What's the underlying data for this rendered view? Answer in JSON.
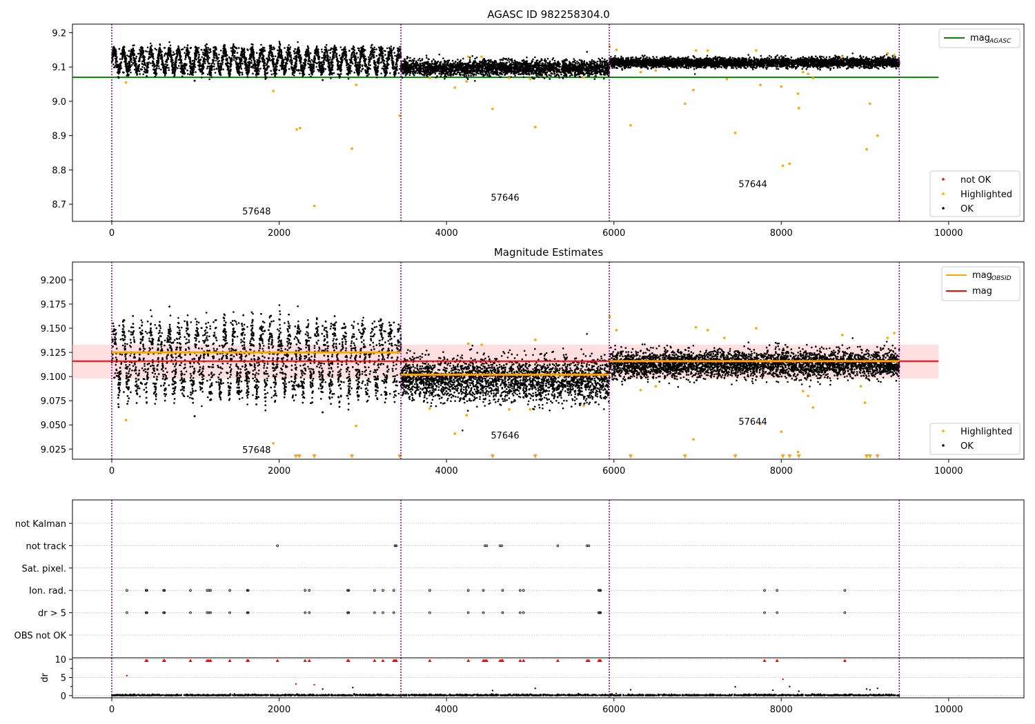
{
  "colors": {
    "ok": "#000000",
    "highlighted": "#ffa500",
    "not_ok": "#ff0000",
    "agasc_line": "#008000",
    "obsid_line": "#ffa500",
    "mag_line": "#ff0000",
    "mag_band": "#ffc0c0",
    "boundary": "#800080",
    "grid": "#b0b0b0"
  },
  "chart_data": [
    {
      "type": "scatter",
      "title": "AGASC ID 982258304.0",
      "xlim": [
        -470,
        10900
      ],
      "ylim": [
        8.65,
        9.225
      ],
      "x_ticks": [
        0,
        2000,
        4000,
        6000,
        8000,
        10000
      ],
      "y_ticks": [
        8.7,
        8.8,
        8.9,
        9.0,
        9.1,
        9.2
      ],
      "y_tick_labels": [
        "8.7",
        "8.8",
        "8.9",
        "9.0",
        "9.1",
        "9.2"
      ],
      "legend_top": {
        "placement": "top-right",
        "entries": [
          {
            "label_main": "mag",
            "label_sub": "AGASC",
            "color": "#008000",
            "kind": "line"
          }
        ]
      },
      "legend_bottom": {
        "placement": "bottom-right",
        "entries": [
          {
            "label": "not OK",
            "color": "#ff0000"
          },
          {
            "label": "Highlighted",
            "color": "#ffa500"
          },
          {
            "label": "OK",
            "color": "#000000"
          }
        ]
      },
      "hlines": [
        {
          "y": 9.07,
          "x_range": [
            -470,
            9880
          ],
          "color": "#008000"
        }
      ],
      "observation_boundaries": [
        0,
        3455,
        5945,
        9410
      ],
      "observations": [
        {
          "obsid": "57648",
          "x_range": [
            0,
            3455
          ],
          "label_pos": [
            1730,
            8.67
          ],
          "ok_base": 9.118,
          "pattern": "oscillating"
        },
        {
          "obsid": "57646",
          "x_range": [
            3455,
            5945
          ],
          "label_pos": [
            4700,
            8.71
          ],
          "ok_base": 9.097,
          "pattern": "noisy"
        },
        {
          "obsid": "57644",
          "x_range": [
            5945,
            9410
          ],
          "label_pos": [
            7660,
            8.75
          ],
          "ok_base": 9.113,
          "pattern": "flat"
        }
      ],
      "highlighted_points": [
        [
          170,
          9.055
        ],
        [
          1930,
          9.03
        ],
        [
          2210,
          8.918
        ],
        [
          2250,
          8.922
        ],
        [
          2420,
          8.695
        ],
        [
          2870,
          8.862
        ],
        [
          2920,
          9.048
        ],
        [
          3440,
          8.958
        ],
        [
          3800,
          9.068
        ],
        [
          4100,
          9.04
        ],
        [
          4240,
          9.058
        ],
        [
          4260,
          9.13
        ],
        [
          4420,
          9.13
        ],
        [
          4550,
          8.978
        ],
        [
          4750,
          9.068
        ],
        [
          5000,
          9.065
        ],
        [
          5060,
          8.925
        ],
        [
          5640,
          9.07
        ],
        [
          5950,
          9.16
        ],
        [
          6030,
          9.15
        ],
        [
          6200,
          8.93
        ],
        [
          6320,
          9.085
        ],
        [
          6500,
          9.09
        ],
        [
          6850,
          8.993
        ],
        [
          6950,
          9.033
        ],
        [
          6980,
          9.148
        ],
        [
          7120,
          9.148
        ],
        [
          7350,
          9.065
        ],
        [
          7450,
          8.908
        ],
        [
          7700,
          9.148
        ],
        [
          7750,
          9.048
        ],
        [
          8000,
          9.043
        ],
        [
          8020,
          8.812
        ],
        [
          8100,
          8.818
        ],
        [
          8200,
          9.022
        ],
        [
          8210,
          8.98
        ],
        [
          8260,
          9.085
        ],
        [
          8320,
          9.08
        ],
        [
          8380,
          9.068
        ],
        [
          8730,
          9.13
        ],
        [
          9020,
          8.86
        ],
        [
          9060,
          8.993
        ],
        [
          9150,
          8.9
        ],
        [
          9270,
          9.14
        ],
        [
          9350,
          9.135
        ]
      ],
      "ok_outliers": [
        [
          990,
          9.06
        ],
        [
          2520,
          9.062
        ]
      ]
    },
    {
      "type": "scatter",
      "title": "Magnitude Estimates",
      "xlim": [
        -470,
        10900
      ],
      "ylim": [
        9.0145,
        9.2185
      ],
      "x_ticks": [
        0,
        2000,
        4000,
        6000,
        8000,
        10000
      ],
      "y_ticks": [
        9.025,
        9.05,
        9.075,
        9.1,
        9.125,
        9.15,
        9.175,
        9.2
      ],
      "y_tick_labels": [
        "9.025",
        "9.050",
        "9.075",
        "9.100",
        "9.125",
        "9.150",
        "9.175",
        "9.200"
      ],
      "legend_top": {
        "placement": "top-right",
        "entries": [
          {
            "label_main": "mag",
            "label_sub": "OBSID",
            "color": "#ffa500",
            "kind": "line"
          },
          {
            "label_main": "mag",
            "label_sub": "",
            "color": "#ff0000",
            "kind": "line"
          }
        ]
      },
      "legend_bottom": {
        "placement": "bottom-right",
        "entries": [
          {
            "label": "Highlighted",
            "color": "#ffa500"
          },
          {
            "label": "OK",
            "color": "#000000"
          }
        ]
      },
      "mag": 9.116,
      "mag_band": [
        9.098,
        9.133
      ],
      "mag_band_x_range": [
        -470,
        9880
      ],
      "obsid_mags": [
        {
          "obsid": "57648",
          "x_range": [
            0,
            3455
          ],
          "mag": 9.125
        },
        {
          "obsid": "57646",
          "x_range": [
            3455,
            5945
          ],
          "mag": 9.102
        },
        {
          "obsid": "57644",
          "x_range": [
            5945,
            9410
          ],
          "mag": 9.116
        }
      ],
      "observation_boundaries": [
        0,
        3455,
        5945,
        9410
      ],
      "observations": [
        {
          "obsid": "57648",
          "x_range": [
            0,
            3455
          ],
          "label_pos": [
            1730,
            9.021
          ],
          "ok_base": 9.118,
          "pattern": "oscillating"
        },
        {
          "obsid": "57646",
          "x_range": [
            3455,
            5945
          ],
          "label_pos": [
            4700,
            9.036
          ],
          "ok_base": 9.097,
          "pattern": "noisy"
        },
        {
          "obsid": "57644",
          "x_range": [
            5945,
            9410
          ],
          "label_pos": [
            7660,
            9.05
          ],
          "ok_base": 9.113,
          "pattern": "flat"
        }
      ],
      "highlighted_points": [
        [
          170,
          9.055
        ],
        [
          1930,
          9.031
        ],
        [
          2920,
          9.049
        ],
        [
          3800,
          9.067
        ],
        [
          4100,
          9.041
        ],
        [
          4240,
          9.06
        ],
        [
          4260,
          9.134
        ],
        [
          4420,
          9.133
        ],
        [
          4750,
          9.066
        ],
        [
          5000,
          9.066
        ],
        [
          5060,
          9.138
        ],
        [
          5640,
          9.07
        ],
        [
          5950,
          9.162
        ],
        [
          6030,
          9.148
        ],
        [
          6320,
          9.086
        ],
        [
          6500,
          9.09
        ],
        [
          6950,
          9.035
        ],
        [
          6980,
          9.151
        ],
        [
          7120,
          9.148
        ],
        [
          7320,
          9.14
        ],
        [
          7700,
          9.15
        ],
        [
          7750,
          9.051
        ],
        [
          8000,
          9.043
        ],
        [
          8200,
          9.022
        ],
        [
          8260,
          9.085
        ],
        [
          8320,
          9.08
        ],
        [
          8380,
          9.068
        ],
        [
          8730,
          9.143
        ],
        [
          8950,
          9.09
        ],
        [
          9000,
          9.073
        ],
        [
          9270,
          9.14
        ],
        [
          9350,
          9.145
        ]
      ],
      "clipped_low_markers": [
        2200,
        2240,
        2420,
        2870,
        3440,
        4550,
        5060,
        6200,
        6850,
        7450,
        8020,
        8100,
        8210,
        9020,
        9060,
        9150
      ],
      "ok_outliers": [
        [
          990,
          9.059
        ],
        [
          2520,
          9.063
        ]
      ]
    },
    {
      "type": "scatter",
      "title": "",
      "xlim": [
        -470,
        10900
      ],
      "x_ticks": [
        0,
        2000,
        4000,
        6000,
        8000,
        10000
      ],
      "flag_rows": [
        "not Kalman",
        "not track",
        "Sat. pixel.",
        "Ion. rad.",
        "dr > 5",
        "OBS not OK"
      ],
      "observation_boundaries": [
        0,
        3455,
        5945,
        9410
      ],
      "not_track_x": [
        1980,
        3385,
        3400,
        4460,
        4480,
        4640,
        4660,
        5330,
        5680,
        5700
      ],
      "ion_rad_x": [
        180,
        410,
        420,
        620,
        630,
        940,
        1140,
        1160,
        1180,
        1410,
        1620,
        1630,
        2310,
        2360,
        2820,
        2830,
        3140,
        3240,
        3370,
        3800,
        4260,
        4440,
        4670,
        4880,
        4920,
        5820,
        5830,
        5840,
        7800,
        7950,
        8760
      ],
      "dr_gt_5_x": [
        180,
        410,
        420,
        620,
        630,
        940,
        1140,
        1160,
        1180,
        1410,
        1620,
        1630,
        2310,
        2360,
        2820,
        2830,
        3140,
        3240,
        3370,
        3800,
        4260,
        4440,
        4670,
        4880,
        4920,
        5820,
        5830,
        5840,
        7800,
        7950,
        8760
      ],
      "dr_panel": {
        "ylabel": "dr",
        "ylim": [
          -0.6,
          10.4
        ],
        "y_ticks": [
          0,
          5,
          10
        ],
        "y_tick_labels": [
          "0",
          "5",
          "10"
        ],
        "clipped_high_x": [
          410,
          420,
          620,
          630,
          940,
          1140,
          1160,
          1180,
          1410,
          1620,
          1630,
          1980,
          2310,
          2360,
          2820,
          2830,
          3140,
          3240,
          3370,
          3385,
          3400,
          3800,
          4260,
          4440,
          4460,
          4480,
          4640,
          4660,
          4670,
          4880,
          4920,
          5330,
          5680,
          5700,
          5820,
          5830,
          5840,
          7800,
          7950,
          8760
        ],
        "red_points": [
          [
            180,
            5.5
          ],
          [
            2200,
            3.2
          ],
          [
            2420,
            3.0
          ],
          [
            8020,
            4.5
          ]
        ],
        "black_points": [
          [
            2520,
            1.8
          ],
          [
            2880,
            2.2
          ],
          [
            4550,
            1.4
          ],
          [
            5060,
            2.0
          ],
          [
            6200,
            1.6
          ],
          [
            7450,
            2.4
          ],
          [
            7900,
            1.5
          ],
          [
            8100,
            2.5
          ],
          [
            8210,
            1.2
          ],
          [
            9020,
            1.8
          ],
          [
            9060,
            1.6
          ],
          [
            9150,
            2.0
          ]
        ]
      }
    }
  ]
}
